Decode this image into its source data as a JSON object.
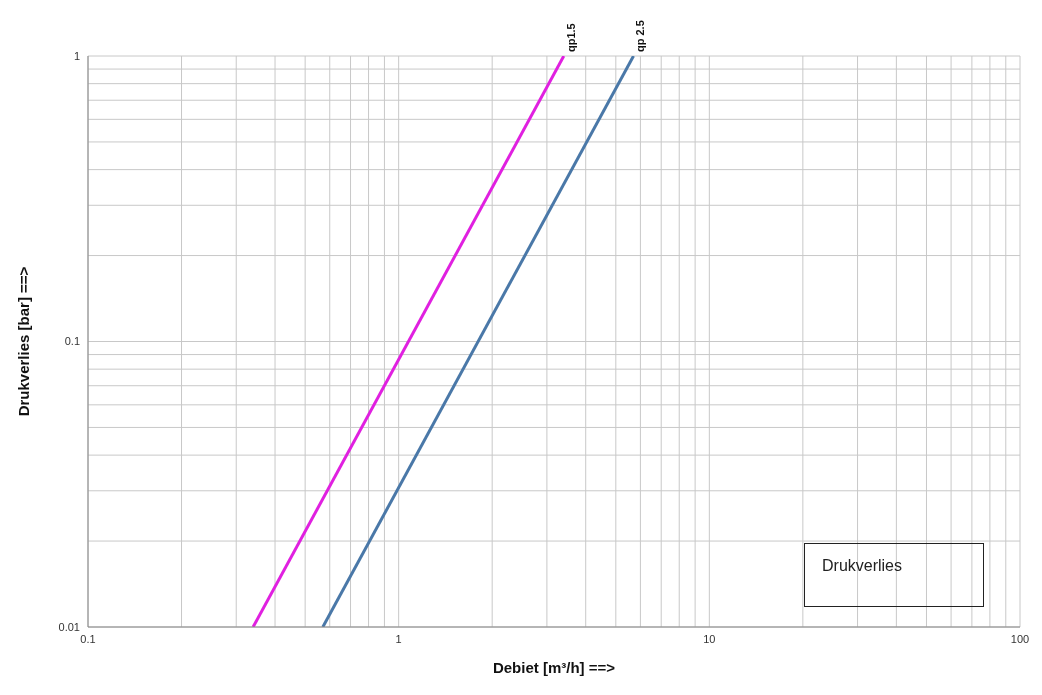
{
  "chart_data": {
    "type": "line",
    "xlabel": "Debiet [m³/h] ==>",
    "ylabel": "Drukverlies [bar] ==>",
    "series": [
      {
        "name": "qp1.5",
        "color": "#e020e0",
        "x": [
          0.34,
          3.4
        ],
        "values": [
          0.01,
          1
        ]
      },
      {
        "name": "qp 2.5",
        "color": "#4a78a8",
        "x": [
          0.57,
          5.7
        ],
        "values": [
          0.01,
          1
        ]
      }
    ],
    "log": "xy",
    "xlim": [
      0.1,
      100
    ],
    "ylim": [
      0.01,
      1
    ],
    "xticks": [
      0.1,
      {
        "value": 0.2,
        "label": null
      },
      {
        "value": 0.3,
        "label": null
      },
      {
        "value": 0.4,
        "label": null
      },
      {
        "value": 0.5,
        "label": null
      },
      {
        "value": 0.6,
        "label": null
      },
      {
        "value": 0.7,
        "label": null
      },
      {
        "value": 0.8,
        "label": null
      },
      {
        "value": 0.9,
        "label": null
      },
      1,
      {
        "value": 2,
        "label": null
      },
      {
        "value": 3,
        "label": null
      },
      {
        "value": 4,
        "label": null
      },
      {
        "value": 5,
        "label": null
      },
      {
        "value": 6,
        "label": null
      },
      {
        "value": 7,
        "label": null
      },
      {
        "value": 8,
        "label": null
      },
      {
        "value": 9,
        "label": null
      },
      10,
      {
        "value": 20,
        "label": null
      },
      {
        "value": 30,
        "label": null
      },
      {
        "value": 40,
        "label": null
      },
      {
        "value": 50,
        "label": null
      },
      {
        "value": 60,
        "label": null
      },
      {
        "value": 70,
        "label": null
      },
      {
        "value": 80,
        "label": null
      },
      {
        "value": 90,
        "label": null
      },
      100
    ],
    "yticks": [
      0.01,
      {
        "value": 0.02,
        "label": null
      },
      {
        "value": 0.03,
        "label": null
      },
      {
        "value": 0.04,
        "label": null
      },
      {
        "value": 0.05,
        "label": null
      },
      {
        "value": 0.06,
        "label": null
      },
      {
        "value": 0.07,
        "label": null
      },
      {
        "value": 0.08,
        "label": null
      },
      {
        "value": 0.09,
        "label": null
      },
      0.1,
      {
        "value": 0.2,
        "label": null
      },
      {
        "value": 0.3,
        "label": null
      },
      {
        "value": 0.4,
        "label": null
      },
      {
        "value": 0.5,
        "label": null
      },
      {
        "value": 0.6,
        "label": null
      },
      {
        "value": 0.7,
        "label": null
      },
      {
        "value": 0.8,
        "label": null
      },
      {
        "value": 0.9,
        "label": null
      },
      1
    ],
    "grid": true,
    "legend": false,
    "marker": "none",
    "line_style": "solid",
    "annotations": [
      "Drukverlies"
    ]
  }
}
